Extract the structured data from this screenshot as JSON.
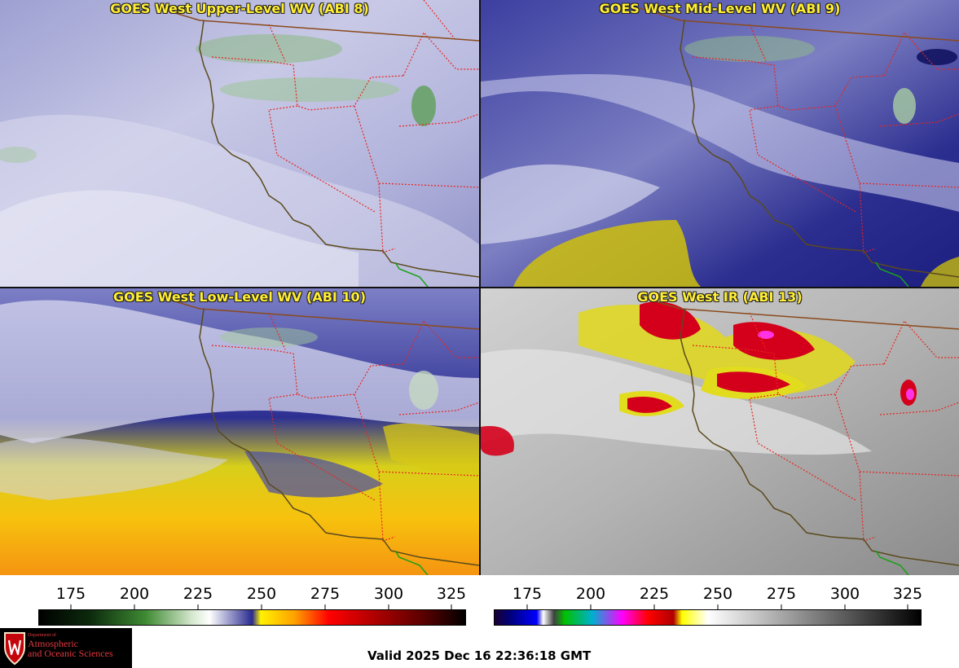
{
  "panels": [
    {
      "id": "upper",
      "title": "GOES West Upper-Level WV (ABI 8)"
    },
    {
      "id": "mid",
      "title": "GOES West Mid-Level WV (ABI 9)"
    },
    {
      "id": "low",
      "title": "GOES West Low-Level WV (ABI 10)"
    },
    {
      "id": "ir",
      "title": "GOES West IR (ABI 13)"
    }
  ],
  "colorbars": {
    "wv_ticks": [
      "175",
      "200",
      "225",
      "250",
      "275",
      "300",
      "325"
    ],
    "ir_ticks": [
      "175",
      "200",
      "225",
      "250",
      "275",
      "300",
      "325"
    ]
  },
  "logo": {
    "line1": "Department of",
    "line2": "Atmospheric",
    "line3": "and Oceanic Sciences"
  },
  "valid_time": "Valid 2025 Dec 16 22:36:18 GMT",
  "colors": {
    "state_border": "#e8251f",
    "coast": "#5a4a1c",
    "mexico_coast": "#19a119",
    "title": "#ffee33"
  }
}
